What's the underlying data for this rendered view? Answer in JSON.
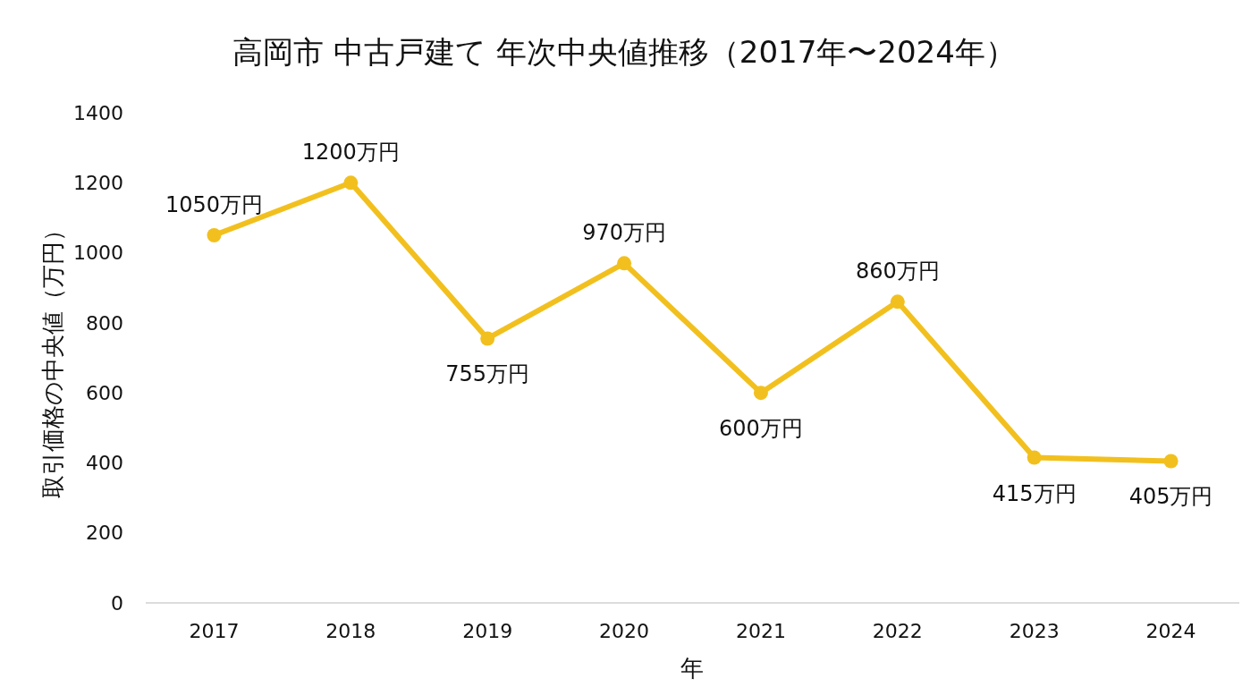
{
  "chart_data": {
    "type": "line",
    "title": "高岡市 中古戸建て 年次中央値推移（2017年〜2024年）",
    "xlabel": "年",
    "ylabel": "取引価格の中央値（万円）",
    "categories": [
      "2017",
      "2018",
      "2019",
      "2020",
      "2021",
      "2022",
      "2023",
      "2024"
    ],
    "series": [
      {
        "color": "#f2c01e",
        "values": [
          1050,
          1200,
          755,
          970,
          600,
          860,
          415,
          405
        ],
        "value_labels": [
          "1050万円",
          "1200万円",
          "755万円",
          "970万円",
          "600万円",
          "860万円",
          "415万円",
          "405万円"
        ]
      }
    ],
    "ylim": [
      0,
      1400
    ],
    "yticks": [
      0,
      200,
      400,
      600,
      800,
      1000,
      1200,
      1400
    ],
    "grid": false,
    "marker": "circle",
    "line_style": "solid"
  }
}
